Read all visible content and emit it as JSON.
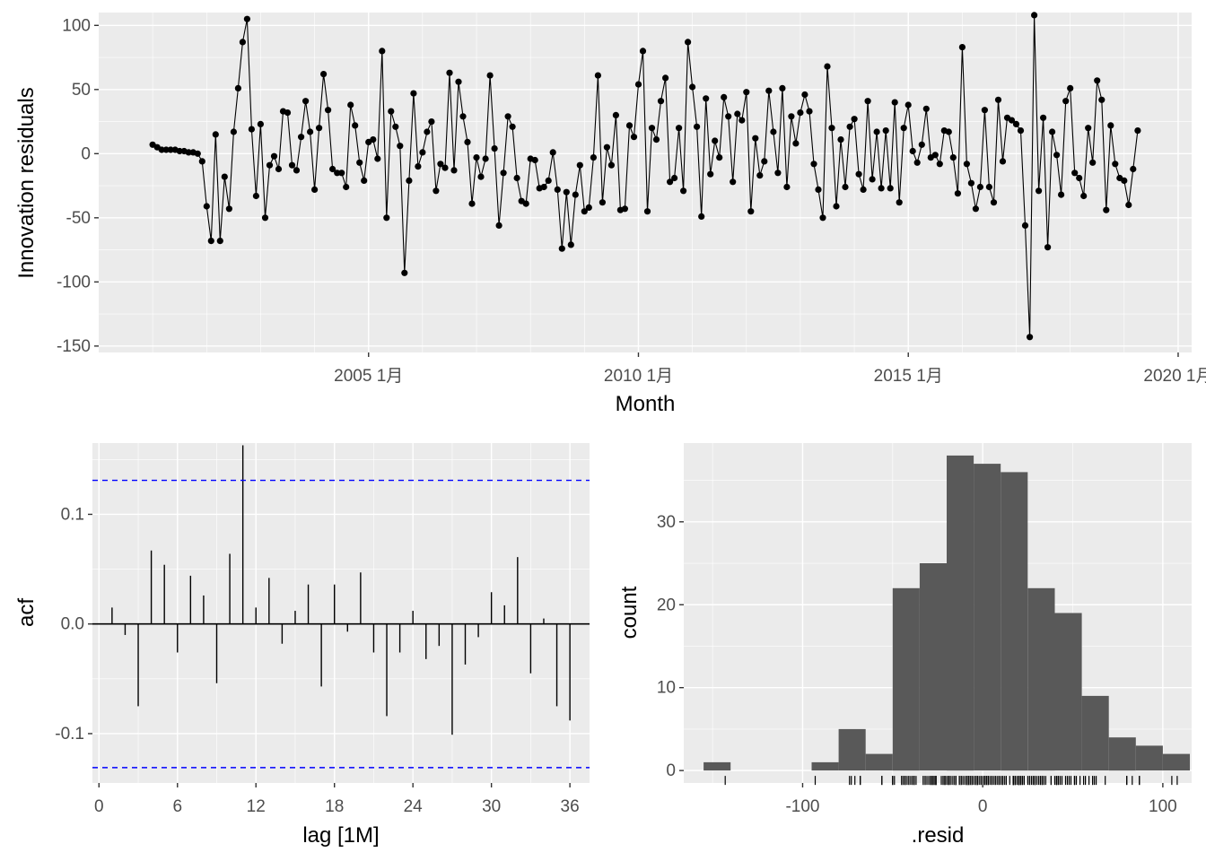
{
  "chart_data": [
    {
      "type": "line",
      "xlabel": "Month",
      "ylabel": "Innovation residuals",
      "x_tick_labels": [
        "2005 1月",
        "2010 1月",
        "2015 1月",
        "2020 1月"
      ],
      "x_ticks": [
        "2005-01",
        "2010-01",
        "2015-01",
        "2020-01"
      ],
      "y_ticks": [
        100,
        50,
        0,
        -50,
        -100,
        -150
      ],
      "y_tick_labels": [
        "100",
        "50",
        "0",
        "-50",
        "-100",
        "-150"
      ],
      "xlim": [
        "2000-01",
        "2020-04"
      ],
      "ylim": [
        -155,
        110
      ],
      "x_start": "2001-01",
      "x_interval": "1 month",
      "grid": true,
      "values": [
        7,
        5,
        3,
        3,
        3,
        3,
        2,
        2,
        1,
        1,
        0,
        -6,
        -41,
        -68,
        15,
        -68,
        -18,
        -43,
        17,
        51,
        87,
        105,
        19,
        -33,
        23,
        -50,
        -9,
        -2,
        -12,
        33,
        32,
        -9,
        -13,
        13,
        41,
        17,
        -28,
        20,
        62,
        34,
        -12,
        -15,
        -15,
        -26,
        38,
        22,
        -7,
        -21,
        9,
        11,
        -4,
        80,
        -50,
        33,
        21,
        6,
        -93,
        -21,
        47,
        -10,
        1,
        17,
        25,
        -29,
        -8,
        -11,
        63,
        -13,
        56,
        29,
        9,
        -39,
        -3,
        -18,
        -4,
        61,
        4,
        -56,
        -15,
        29,
        21,
        -19,
        -37,
        -39,
        -4,
        -5,
        -27,
        -26,
        -21,
        1,
        -28,
        -74,
        -30,
        -71,
        -32,
        -9,
        -45,
        -42,
        -3,
        61,
        -38,
        5,
        -9,
        30,
        -44,
        -43,
        22,
        13,
        54,
        80,
        -45,
        20,
        11,
        41,
        59,
        -22,
        -19,
        20,
        -29,
        87,
        52,
        21,
        -49,
        43,
        -16,
        10,
        -3,
        44,
        29,
        -22,
        31,
        26,
        48,
        -45,
        12,
        -17,
        -6,
        49,
        17,
        -15,
        51,
        -26,
        29,
        8,
        32,
        46,
        33,
        -8,
        -28,
        -50,
        68,
        20,
        -41,
        11,
        -26,
        21,
        27,
        -16,
        -28,
        41,
        -20,
        17,
        -27,
        18,
        -27,
        40,
        -38,
        20,
        38,
        2,
        -7,
        7,
        35,
        -3,
        -1,
        -8,
        18,
        17,
        -3,
        -31,
        83,
        -8,
        -23,
        -43,
        -26,
        34,
        -26,
        -38,
        42,
        -6,
        28,
        26,
        23,
        18,
        -56,
        -143,
        108,
        -29,
        28,
        -73,
        17,
        -1,
        -32,
        41,
        51,
        -15,
        -19,
        -33,
        20,
        -7,
        57,
        42,
        -44,
        22,
        -8,
        -19,
        -21,
        -40,
        -12,
        18
      ]
    },
    {
      "type": "bar",
      "xlabel": "lag [1M]",
      "ylabel": "acf",
      "x_ticks": [
        0,
        6,
        12,
        18,
        24,
        30,
        36
      ],
      "x_tick_labels": [
        "0",
        "6",
        "12",
        "18",
        "24",
        "30",
        "36"
      ],
      "y_ticks": [
        0.1,
        0.0,
        -0.1
      ],
      "y_tick_labels": [
        "0.1",
        "0.0",
        "-0.1"
      ],
      "xlim": [
        -0.5,
        37.5
      ],
      "ylim": [
        -0.145,
        0.165
      ],
      "confidence_bounds": [
        0.131,
        -0.131
      ],
      "bound_color": "#0000ff",
      "grid": true,
      "lags": [
        1,
        2,
        3,
        4,
        5,
        6,
        7,
        8,
        9,
        10,
        11,
        12,
        13,
        14,
        15,
        16,
        17,
        18,
        19,
        20,
        21,
        22,
        23,
        24,
        25,
        26,
        27,
        28,
        29,
        30,
        31,
        32,
        33,
        34,
        35,
        36
      ],
      "values": [
        0.015,
        -0.01,
        -0.075,
        0.067,
        0.054,
        -0.026,
        0.044,
        0.026,
        -0.054,
        0.064,
        0.163,
        0.015,
        0.042,
        -0.018,
        0.012,
        0.036,
        -0.057,
        0.036,
        -0.007,
        0.047,
        -0.026,
        -0.084,
        -0.026,
        0.012,
        -0.032,
        -0.02,
        -0.101,
        -0.037,
        -0.012,
        0.029,
        0.017,
        0.061,
        -0.045,
        0.005,
        -0.075,
        -0.088
      ]
    },
    {
      "type": "histogram",
      "xlabel": ".resid",
      "ylabel": "count",
      "x_ticks": [
        -100,
        0,
        100
      ],
      "x_tick_labels": [
        "-100",
        "0",
        "100"
      ],
      "y_ticks": [
        0,
        10,
        20,
        30
      ],
      "y_tick_labels": [
        "0",
        "10",
        "20",
        "30"
      ],
      "xlim": [
        -166,
        116
      ],
      "ylim": [
        -1.5,
        39.5
      ],
      "bar_color": "#595959",
      "grid": true,
      "bins": [
        {
          "x0": -155,
          "x1": -140,
          "count": 1
        },
        {
          "x0": -140,
          "x1": -125,
          "count": 0
        },
        {
          "x0": -125,
          "x1": -110,
          "count": 0
        },
        {
          "x0": -110,
          "x1": -95,
          "count": 0
        },
        {
          "x0": -95,
          "x1": -80,
          "count": 1
        },
        {
          "x0": -80,
          "x1": -65,
          "count": 5
        },
        {
          "x0": -65,
          "x1": -50,
          "count": 2
        },
        {
          "x0": -50,
          "x1": -35,
          "count": 22
        },
        {
          "x0": -35,
          "x1": -20,
          "count": 25
        },
        {
          "x0": -20,
          "x1": -5,
          "count": 38
        },
        {
          "x0": -5,
          "x1": 10,
          "count": 37
        },
        {
          "x0": 10,
          "x1": 25,
          "count": 36
        },
        {
          "x0": 25,
          "x1": 40,
          "count": 22
        },
        {
          "x0": 40,
          "x1": 55,
          "count": 19
        },
        {
          "x0": 55,
          "x1": 70,
          "count": 9
        },
        {
          "x0": 70,
          "x1": 85,
          "count": 4
        },
        {
          "x0": 85,
          "x1": 100,
          "count": 3
        },
        {
          "x0": 100,
          "x1": 115,
          "count": 2
        }
      ]
    }
  ]
}
